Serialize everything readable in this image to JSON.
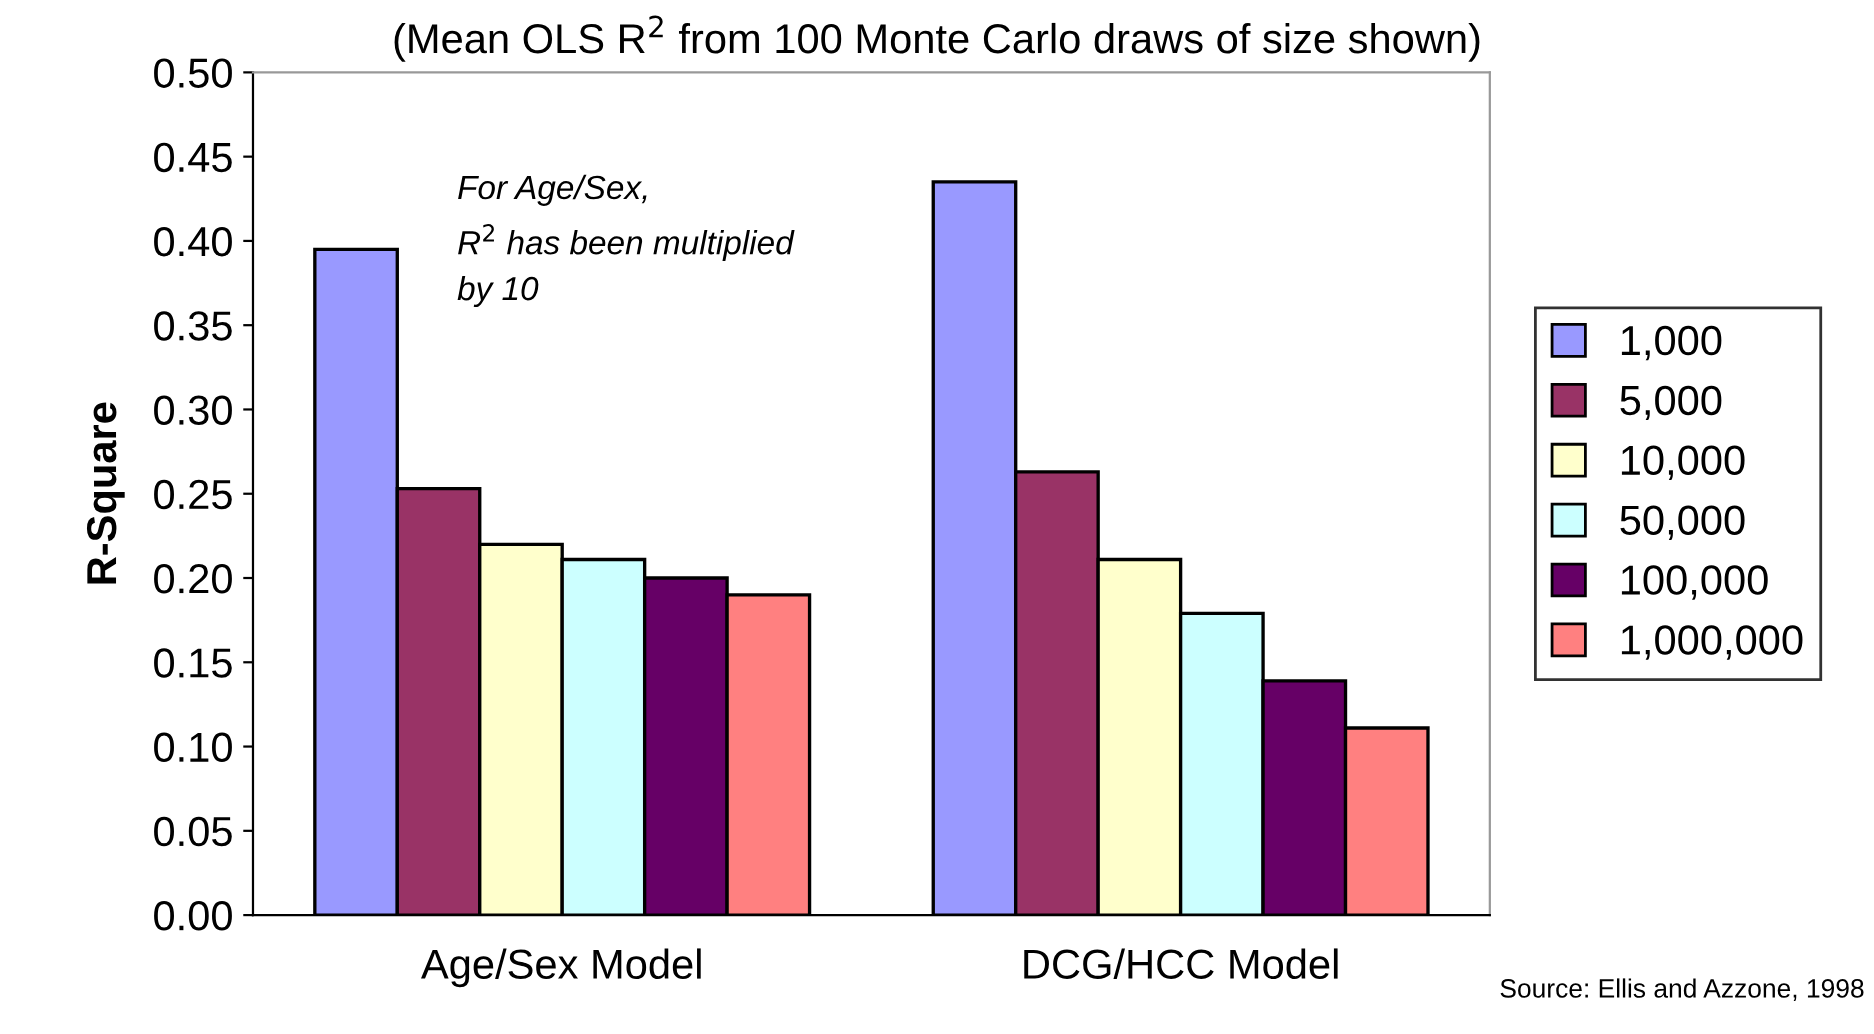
{
  "chart_data": {
    "type": "bar",
    "title": "(Mean OLS R$^{2}$ from 100 Monte Carlo draws of size shown)",
    "ylabel": "R-Square",
    "categories": [
      "Age/Sex Model",
      "DCG/HCC Model"
    ],
    "series": [
      {
        "name": "1,000",
        "color": "#9999ff",
        "values": [
          0.395,
          0.435
        ]
      },
      {
        "name": "5,000",
        "color": "#993366",
        "values": [
          0.253,
          0.263
        ]
      },
      {
        "name": "10,000",
        "color": "#ffffcc",
        "values": [
          0.22,
          0.211
        ]
      },
      {
        "name": "50,000",
        "color": "#ccffff",
        "values": [
          0.211,
          0.179
        ]
      },
      {
        "name": "100,000",
        "color": "#660066",
        "values": [
          0.2,
          0.139
        ]
      },
      {
        "name": "1,000,000",
        "color": "#ff8080",
        "values": [
          0.19,
          0.111
        ]
      }
    ],
    "ylim": [
      0,
      0.5
    ],
    "yticks": [
      {
        "value": 0,
        "label": "0.00"
      },
      {
        "value": 0.05,
        "label": "0.05"
      },
      {
        "value": 0.1,
        "label": "0.10"
      },
      {
        "value": 0.15,
        "label": "0.15"
      },
      {
        "value": 0.2,
        "label": "0.20"
      },
      {
        "value": 0.25,
        "label": "0.25"
      },
      {
        "value": 0.3,
        "label": "0.30"
      },
      {
        "value": 0.35,
        "label": "0.35"
      },
      {
        "value": 0.4,
        "label": "0.40"
      },
      {
        "value": 0.45,
        "label": "0.45"
      },
      {
        "value": 0.5,
        "label": "0.50"
      }
    ],
    "grid": false,
    "legend": "right",
    "annotations": [
      "For Age/Sex,\nR$^{2}$ has been multiplied\nby 10",
      "Source: Ellis and Azzone, 1998"
    ]
  }
}
